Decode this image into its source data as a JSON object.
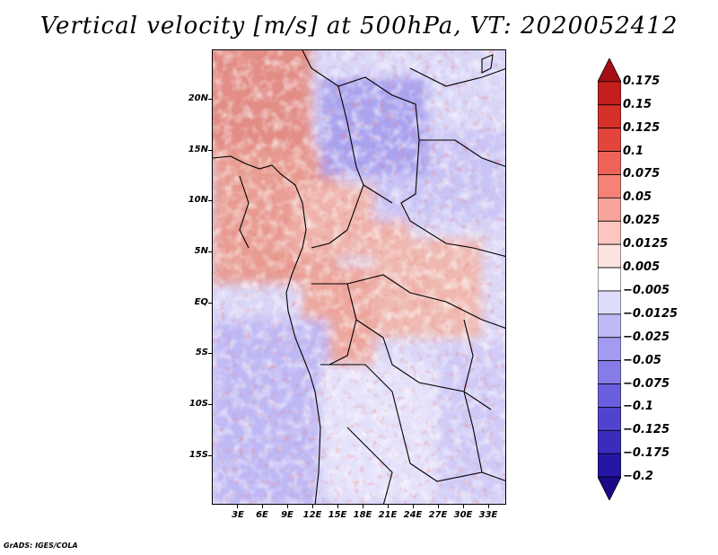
{
  "title": "Vertical velocity [m/s] at 500hPa, VT: 2020052412",
  "footer": "GrADS: IGES/COLA",
  "map": {
    "lat_labels": [
      "20N",
      "15N",
      "10N",
      "5N",
      "EQ",
      "5S",
      "10S",
      "15S"
    ],
    "lon_labels": [
      "3E",
      "6E",
      "9E",
      "12E",
      "15E",
      "18E",
      "21E",
      "24E",
      "27E",
      "30E",
      "33E"
    ]
  },
  "colorbar": {
    "levels": [
      "0.175",
      "0.15",
      "0.125",
      "0.1",
      "0.075",
      "0.05",
      "0.025",
      "0.0125",
      "0.005",
      "−0.005",
      "−0.0125",
      "−0.025",
      "−0.05",
      "−0.075",
      "−0.1",
      "−0.125",
      "−0.175",
      "−0.2"
    ],
    "colors": [
      "#a50f15",
      "#c41e1e",
      "#d6302b",
      "#e3453d",
      "#ee6257",
      "#f48276",
      "#f8a49a",
      "#fbc6bf",
      "#fde3df",
      "#ffffff",
      "#dedcfb",
      "#bfbaf5",
      "#a29bf0",
      "#857ce8",
      "#6a5fde",
      "#5044cf",
      "#3a2dbd",
      "#2616a6",
      "#1a0a8a"
    ]
  }
}
